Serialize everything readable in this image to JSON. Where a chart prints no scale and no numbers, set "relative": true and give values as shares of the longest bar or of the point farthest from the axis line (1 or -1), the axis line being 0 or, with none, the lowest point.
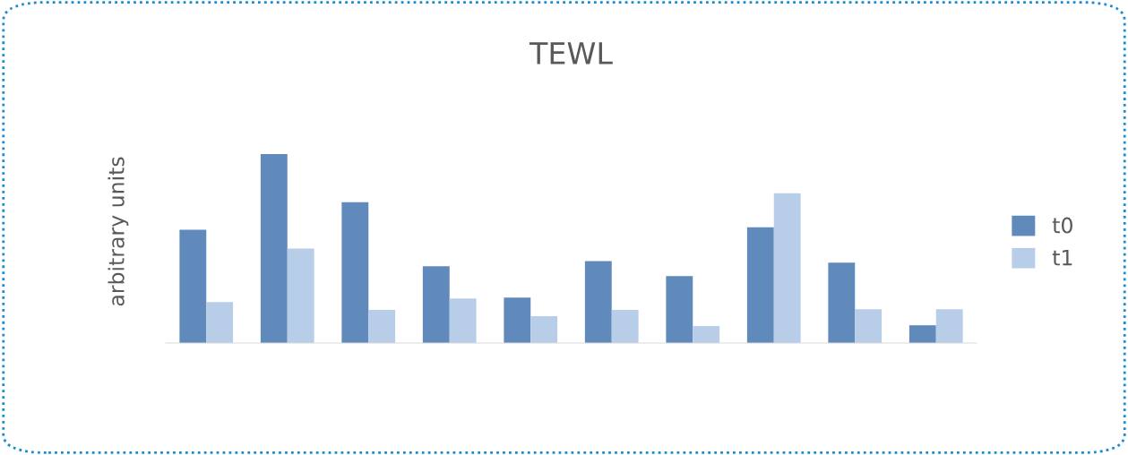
{
  "chart_data": {
    "type": "bar",
    "title": "TEWL",
    "ylabel": "arbitrary units",
    "relative": true,
    "legend": "right",
    "categories": [
      null,
      null,
      null,
      null,
      null,
      null,
      null,
      null,
      null,
      null
    ],
    "series": [
      {
        "name": "t0",
        "color": "#6089bc",
        "values": [
          0.6,
          1,
          0.745,
          0.406,
          0.241,
          0.434,
          0.354,
          0.613,
          0.425,
          0.094
        ]
      },
      {
        "name": "t1",
        "color": "#b8cde8",
        "values": [
          0.217,
          0.5,
          0.175,
          0.236,
          0.142,
          0.175,
          0.09,
          0.792,
          0.179,
          0.179
        ]
      }
    ]
  }
}
